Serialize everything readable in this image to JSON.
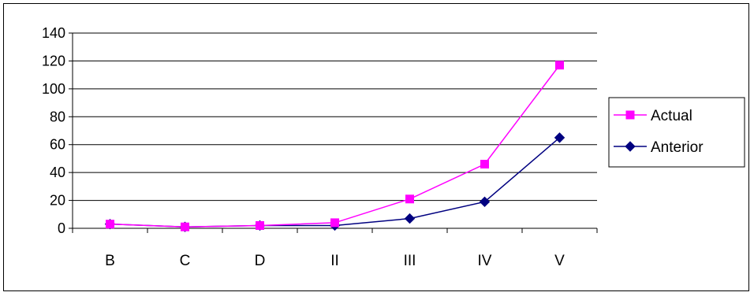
{
  "chart_data": {
    "type": "line",
    "title": "",
    "xlabel": "",
    "ylabel": "",
    "categories": [
      "B",
      "C",
      "D",
      "II",
      "III",
      "IV",
      "V"
    ],
    "ylim": [
      0,
      140
    ],
    "yticks": [
      0,
      20,
      40,
      60,
      80,
      100,
      120,
      140
    ],
    "grid": true,
    "legend_position": "right",
    "series": [
      {
        "name": "Actual",
        "color": "#ff00ff",
        "marker": "square",
        "values": [
          3,
          1,
          2,
          4,
          21,
          46,
          117
        ]
      },
      {
        "name": "Anterior",
        "color": "#000080",
        "marker": "diamond",
        "values": [
          3,
          1,
          2,
          2,
          7,
          19,
          65
        ]
      }
    ]
  }
}
